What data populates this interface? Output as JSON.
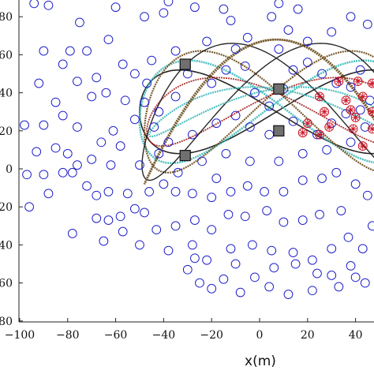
{
  "chart_data": {
    "type": "scatter",
    "title": "",
    "xlabel": "x(m)",
    "ylabel": "",
    "xlim": [
      -100,
      48
    ],
    "ylim": [
      -80,
      90
    ],
    "x_ticks": [
      -100,
      -80,
      -60,
      -40,
      -20,
      0,
      20,
      40
    ],
    "y_ticks": [
      -80,
      -60,
      -40,
      -20,
      0,
      20,
      40,
      60,
      80
    ],
    "x_tick_labels": [
      "−100",
      "−80",
      "−60",
      "−40",
      "−20",
      "0",
      "20",
      "40"
    ],
    "y_tick_labels": [
      "80",
      "60",
      "40",
      "20",
      "0",
      "20",
      "40",
      "60",
      "80"
    ],
    "grid": false,
    "legend": "none",
    "colors": {
      "scatter_points": "#2222cc",
      "trajectory_main": "#111111",
      "trajectory_alt": "#6a4a1a",
      "trajectory_cyan": "#3cb8b8",
      "trajectory_red": "#a02020",
      "anchors_fill": "#707070",
      "targets": "#cc1122"
    },
    "scatter_points": [
      [
        -94,
        87
      ],
      [
        -88,
        86
      ],
      [
        -75,
        77
      ],
      [
        -60,
        85
      ],
      [
        -48,
        80
      ],
      [
        -40,
        82
      ],
      [
        -27,
        85
      ],
      [
        -38,
        88
      ],
      [
        -15,
        84
      ],
      [
        -22,
        67
      ],
      [
        -35,
        62
      ],
      [
        -10,
        63
      ],
      [
        -5,
        69
      ],
      [
        -12,
        78
      ],
      [
        5,
        80
      ],
      [
        8,
        87
      ],
      [
        16,
        84
      ],
      [
        12,
        73
      ],
      [
        8,
        63
      ],
      [
        20,
        67
      ],
      [
        30,
        72
      ],
      [
        38,
        80
      ],
      [
        45,
        76
      ],
      [
        -90,
        62
      ],
      [
        -79,
        62
      ],
      [
        -82,
        55
      ],
      [
        -72,
        62
      ],
      [
        -63,
        68
      ],
      [
        -57,
        55
      ],
      [
        -52,
        50
      ],
      [
        -45,
        57
      ],
      [
        -47,
        45
      ],
      [
        -68,
        48
      ],
      [
        -76,
        46
      ],
      [
        -70,
        38
      ],
      [
        -92,
        45
      ],
      [
        -85,
        35
      ],
      [
        -64,
        40
      ],
      [
        -56,
        36
      ],
      [
        -48,
        35
      ],
      [
        -82,
        28
      ],
      [
        -90,
        23
      ],
      [
        -98,
        23
      ],
      [
        -76,
        22
      ],
      [
        -61,
        20
      ],
      [
        -52,
        26
      ],
      [
        -44,
        22
      ],
      [
        -58,
        12
      ],
      [
        -66,
        14
      ],
      [
        -85,
        11
      ],
      [
        -80,
        8
      ],
      [
        -93,
        9
      ],
      [
        -76,
        2
      ],
      [
        -70,
        5
      ],
      [
        -62,
        2
      ],
      [
        -50,
        2
      ],
      [
        -42,
        8
      ],
      [
        -97,
        -3
      ],
      [
        -90,
        -3
      ],
      [
        -82,
        -2
      ],
      [
        -78,
        -2
      ],
      [
        -72,
        -9
      ],
      [
        -68,
        -14
      ],
      [
        -88,
        -13
      ],
      [
        -96,
        -20
      ],
      [
        -63,
        -12
      ],
      [
        -55,
        -13
      ],
      [
        -46,
        -12
      ],
      [
        -40,
        -8
      ],
      [
        -35,
        -12
      ],
      [
        -28,
        -13
      ],
      [
        -18,
        -5
      ],
      [
        -20,
        -15
      ],
      [
        -12,
        -12
      ],
      [
        -5,
        -9
      ],
      [
        2,
        -12
      ],
      [
        10,
        -12
      ],
      [
        18,
        -6
      ],
      [
        26,
        -5
      ],
      [
        32,
        -2
      ],
      [
        40,
        -8
      ],
      [
        45,
        -14
      ],
      [
        -63,
        -27
      ],
      [
        -58,
        -25
      ],
      [
        -52,
        -21
      ],
      [
        -48,
        -23
      ],
      [
        -68,
        -26
      ],
      [
        -57,
        -33
      ],
      [
        -43,
        -32
      ],
      [
        -35,
        -30
      ],
      [
        -27,
        -27
      ],
      [
        -20,
        -32
      ],
      [
        -13,
        -24
      ],
      [
        -6,
        -25
      ],
      [
        3,
        -22
      ],
      [
        10,
        -28
      ],
      [
        18,
        -27
      ],
      [
        25,
        -24
      ],
      [
        34,
        -22
      ],
      [
        -78,
        -34
      ],
      [
        -65,
        -38
      ],
      [
        -50,
        -40
      ],
      [
        -38,
        -43
      ],
      [
        -28,
        -40
      ],
      [
        -22,
        -48
      ],
      [
        -12,
        -42
      ],
      [
        -3,
        -40
      ],
      [
        5,
        -43
      ],
      [
        14,
        -44
      ],
      [
        22,
        -48
      ],
      [
        30,
        -42
      ],
      [
        37,
        -36
      ],
      [
        43,
        -42
      ],
      [
        47,
        -30
      ],
      [
        -30,
        -53
      ],
      [
        -25,
        -60
      ],
      [
        -27,
        -47
      ],
      [
        -15,
        -58
      ],
      [
        -10,
        -50
      ],
      [
        -2,
        -57
      ],
      [
        6,
        -52
      ],
      [
        15,
        -50
      ],
      [
        24,
        -55
      ],
      [
        30,
        -56
      ],
      [
        38,
        -51
      ],
      [
        44,
        -60
      ],
      [
        -20,
        -63
      ],
      [
        -8,
        -65
      ],
      [
        4,
        -62
      ],
      [
        12,
        -66
      ],
      [
        22,
        -64
      ],
      [
        33,
        -62
      ],
      [
        40,
        -57
      ],
      [
        -42,
        30
      ],
      [
        -35,
        38
      ],
      [
        -30,
        50
      ],
      [
        -20,
        45
      ],
      [
        -14,
        52
      ],
      [
        -6,
        54
      ],
      [
        -2,
        40
      ],
      [
        4,
        33
      ],
      [
        10,
        42
      ],
      [
        14,
        52
      ],
      [
        20,
        56
      ],
      [
        26,
        50
      ],
      [
        32,
        45
      ],
      [
        38,
        43
      ],
      [
        42,
        52
      ],
      [
        -38,
        14
      ],
      [
        -28,
        18
      ],
      [
        -18,
        24
      ],
      [
        -10,
        28
      ],
      [
        -4,
        22
      ],
      [
        4,
        18
      ],
      [
        14,
        25
      ],
      [
        24,
        18
      ],
      [
        30,
        24
      ],
      [
        36,
        29
      ],
      [
        42,
        31
      ],
      [
        46,
        36
      ],
      [
        -34,
        -2
      ],
      [
        -24,
        4
      ],
      [
        -14,
        8
      ],
      [
        -4,
        4
      ],
      [
        8,
        4
      ],
      [
        18,
        8
      ],
      [
        28,
        10
      ],
      [
        38,
        14
      ],
      [
        44,
        22
      ]
    ],
    "target_points": [
      [
        33,
        46
      ],
      [
        41,
        46
      ],
      [
        47,
        45
      ],
      [
        25,
        38
      ],
      [
        36,
        36
      ],
      [
        43,
        38
      ],
      [
        27,
        30
      ],
      [
        40,
        27
      ],
      [
        47,
        30
      ],
      [
        20,
        24
      ],
      [
        29,
        22
      ],
      [
        39,
        21
      ],
      [
        47,
        21
      ],
      [
        18,
        19
      ],
      [
        25,
        18
      ],
      [
        43,
        12
      ],
      [
        38,
        31
      ]
    ],
    "anchor_points": [
      [
        -31,
        55
      ],
      [
        -31,
        7
      ],
      [
        8,
        42
      ],
      [
        8,
        20
      ]
    ]
  }
}
